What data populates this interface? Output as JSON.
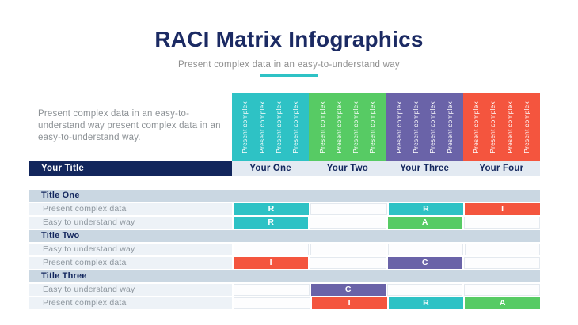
{
  "title": "RACI Matrix Infographics",
  "subtitle": "Present complex data in an easy-to-understand way",
  "intro_text": "Present complex data in an easy-to-understand way present complex data in an easy-to-understand way.",
  "colors": {
    "navy": "#13275e",
    "teal": "#2ec2c5",
    "green": "#57cb64",
    "purple": "#6a63a8",
    "red": "#f4553e",
    "section_row_bg": "#cad7e2",
    "data_row_bg": "#edf2f7",
    "column_label_row_bg": "#e3eaf2",
    "accent_underline": "#2ec2c5"
  },
  "matrix": {
    "row_header": "Your Title",
    "columns": [
      {
        "label": "Your One",
        "color": "#2ec2c5",
        "vertical_labels": [
          "Present complex",
          "Present complex",
          "Present complex",
          "Present complex"
        ]
      },
      {
        "label": "Your Two",
        "color": "#57cb64",
        "vertical_labels": [
          "Present complex",
          "Present complex",
          "Present complex",
          "Present complex"
        ]
      },
      {
        "label": "Your Three",
        "color": "#6a63a8",
        "vertical_labels": [
          "Present complex",
          "Present complex",
          "Present complex",
          "Present complex"
        ]
      },
      {
        "label": "Your Four",
        "color": "#f4553e",
        "vertical_labels": [
          "Present complex",
          "Present complex",
          "Present complex",
          "Present complex"
        ]
      }
    ],
    "legend_colors": {
      "R": "#2ec2c5",
      "A": "#57cb64",
      "C": "#6a63a8",
      "I": "#f4553e"
    },
    "sections": [
      {
        "title": "Title One",
        "rows": [
          {
            "label": "Present complex data",
            "cells": [
              "R",
              "",
              "R",
              "I"
            ]
          },
          {
            "label": "Easy to understand way",
            "cells": [
              "R",
              "",
              "A",
              ""
            ]
          }
        ]
      },
      {
        "title": "Title Two",
        "rows": [
          {
            "label": "Easy to understand way",
            "cells": [
              "",
              "",
              "",
              ""
            ]
          },
          {
            "label": "Present complex data",
            "cells": [
              "I",
              "",
              "C",
              ""
            ]
          }
        ]
      },
      {
        "title": "Title Three",
        "rows": [
          {
            "label": "Easy to understand way",
            "cells": [
              "",
              "C",
              "",
              ""
            ]
          },
          {
            "label": "Present complex data",
            "cells": [
              "",
              "I",
              "R",
              "A"
            ]
          }
        ]
      }
    ]
  }
}
